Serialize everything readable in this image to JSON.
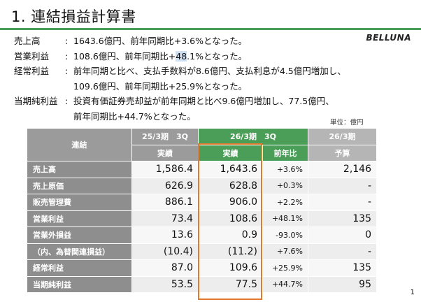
{
  "title": "1. 連結損益計算書",
  "logo": "BELLUNA",
  "summary": [
    {
      "label": "売上高",
      "text_before": "1643.6億円、前年同期比+3.6%となった。",
      "highlight": "",
      "text_after": ""
    },
    {
      "label": "営業利益",
      "text_before": "108.6億円、前年同期比+",
      "highlight": "48",
      "text_after": ".1%となった。"
    },
    {
      "label": "経常利益",
      "text_before": "前年同期と比べ、支払手数料が8.6億円、支払利息が4.5億円増加し、",
      "highlight": "",
      "text_after": ""
    },
    {
      "label": "",
      "text_before": "109.6億円、前年同期比+25.9%となった。",
      "highlight": "",
      "text_after": ""
    },
    {
      "label": "当期純利益",
      "text_before": "投資有価証券売却益が前年同期と比べ9.6億円増加し、77.5億円、",
      "highlight": "",
      "text_after": ""
    },
    {
      "label": "",
      "text_before": "前年同期比+44.7%となった。",
      "highlight": "",
      "text_after": ""
    }
  ],
  "unit": "単位：億円",
  "table": {
    "corner": "連結",
    "periods": [
      "25/3期　3Q",
      "26/3期　3Q",
      "26/3期"
    ],
    "subheaders": [
      "実績",
      "実績",
      "前年比",
      "予算"
    ],
    "rows": [
      {
        "label": "売上高",
        "prev": "1,586.4",
        "curr": "1,643.6",
        "yoy": "+3.6%",
        "budget": "2,146"
      },
      {
        "label": "売上原価",
        "prev": "626.9",
        "curr": "628.8",
        "yoy": "+0.3%",
        "budget": "-"
      },
      {
        "label": "販売管理費",
        "prev": "886.1",
        "curr": "906.0",
        "yoy": "+2.2%",
        "budget": "-"
      },
      {
        "label": "営業利益",
        "prev": "73.4",
        "curr": "108.6",
        "yoy": "+48.1%",
        "budget": "135"
      },
      {
        "label": "営業外損益",
        "prev": "13.6",
        "curr": "0.9",
        "yoy": "-93.0%",
        "budget": "0"
      },
      {
        "label": "（内、為替関連損益）",
        "prev": "(10.4)",
        "curr": "(11.2)",
        "yoy": "+7.6%",
        "budget": "-"
      },
      {
        "label": "経常利益",
        "prev": "87.0",
        "curr": "109.6",
        "yoy": "+25.9%",
        "budget": "135"
      },
      {
        "label": "当期純利益",
        "prev": "53.5",
        "curr": "77.5",
        "yoy": "+44.7%",
        "budget": "95"
      }
    ]
  },
  "page_number": "1",
  "colors": {
    "accent": "#4a9e57",
    "header_gray": "#9b9b9b",
    "label_gray": "#8e8e8e",
    "focus_box": "#e07a2e"
  }
}
